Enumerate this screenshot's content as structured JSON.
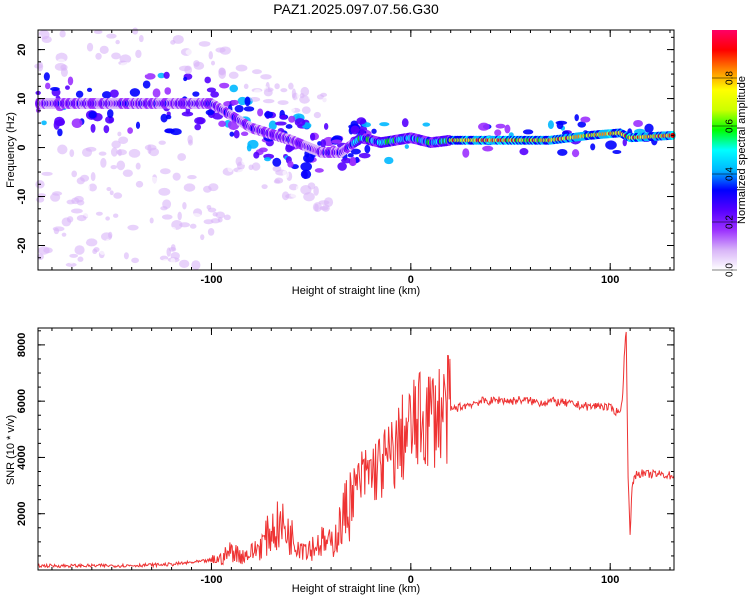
{
  "figure": {
    "title": "PAZ1.2025.097.07.56.G30"
  },
  "chart_data": [
    {
      "type": "heatmap",
      "title": "PAZ1.2025.097.07.56.G30",
      "xlabel": "Height of straight line (km)",
      "ylabel": "Frequency (Hz)",
      "xlim": [
        -187,
        132
      ],
      "ylim": [
        -25,
        24
      ],
      "xticks": [
        -100,
        0,
        100
      ],
      "yticks": [
        -20,
        -10,
        0,
        10,
        20
      ],
      "colorbar": {
        "label": "Normalized spectral amplitude",
        "range": [
          0,
          1
        ],
        "ticks": [
          0.0,
          0.2,
          0.4,
          0.6,
          0.8
        ],
        "colors": [
          "#ffffff",
          "#d8b4f8",
          "#9b30ff",
          "#5500ff",
          "#0000ff",
          "#00b8ff",
          "#00ffff",
          "#00ff00",
          "#ccff00",
          "#ffff00",
          "#ff8800",
          "#ff0000",
          "#ff0066"
        ]
      },
      "ridge": [
        {
          "x": -100,
          "f": 9
        },
        {
          "x": -80,
          "f": 4
        },
        {
          "x": -60,
          "f": 1.5
        },
        {
          "x": -45,
          "f": -1
        },
        {
          "x": -35,
          "f": -1
        },
        {
          "x": -25,
          "f": 2
        },
        {
          "x": -15,
          "f": 1
        },
        {
          "x": 0,
          "f": 2
        },
        {
          "x": 10,
          "f": 1
        },
        {
          "x": 20,
          "f": 1.5
        },
        {
          "x": 40,
          "f": 1.5
        },
        {
          "x": 70,
          "f": 1.5
        },
        {
          "x": 90,
          "f": 2.5
        },
        {
          "x": 105,
          "f": 3
        },
        {
          "x": 110,
          "f": 2
        },
        {
          "x": 132,
          "f": 2.5
        }
      ]
    },
    {
      "type": "line",
      "xlabel": "Height of straight line (km)",
      "ylabel": "SNR (10 * v/v)",
      "xlim": [
        -187,
        132
      ],
      "ylim": [
        0,
        8600
      ],
      "xticks": [
        -100,
        0,
        100
      ],
      "yticks": [
        2000,
        4000,
        6000,
        8000
      ],
      "series": [
        {
          "name": "SNR",
          "color": "#ee3333",
          "x": [
            -187,
            -160,
            -140,
            -120,
            -105,
            -95,
            -90,
            -85,
            -80,
            -75,
            -70,
            -65,
            -60,
            -55,
            -50,
            -45,
            -40,
            -35,
            -30,
            -25,
            -20,
            -15,
            -10,
            -5,
            0,
            5,
            10,
            15,
            20,
            25,
            30,
            35,
            40,
            45,
            50,
            55,
            60,
            65,
            70,
            75,
            80,
            85,
            90,
            95,
            100,
            104,
            106,
            107,
            108,
            109,
            110,
            111,
            112,
            114,
            118,
            125,
            132
          ],
          "y": [
            150,
            150,
            160,
            200,
            300,
            400,
            700,
            500,
            600,
            900,
            1400,
            1600,
            1200,
            900,
            800,
            1000,
            900,
            1600,
            2600,
            3200,
            3500,
            3700,
            4000,
            4600,
            5000,
            5300,
            5500,
            5600,
            5700,
            5800,
            5900,
            6000,
            6000,
            6050,
            6000,
            6050,
            6000,
            5950,
            6000,
            5950,
            5900,
            5850,
            5800,
            5850,
            5750,
            5600,
            5900,
            7500,
            8600,
            3200,
            1200,
            3000,
            3300,
            3450,
            3400,
            3400,
            3350
          ]
        }
      ]
    }
  ]
}
